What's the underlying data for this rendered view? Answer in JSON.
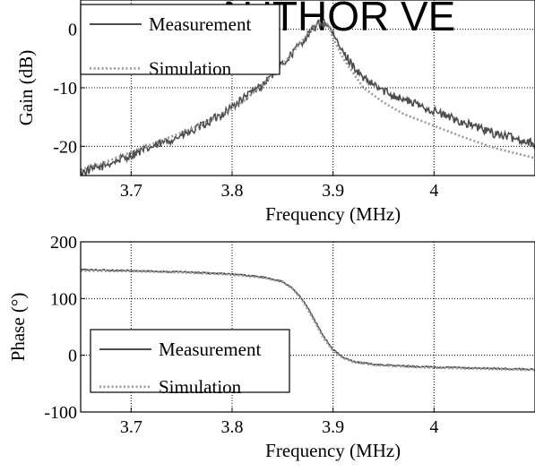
{
  "watermark": "AUTHOR VE",
  "chart_data": [
    {
      "type": "line",
      "xlabel": "Frequency (MHz)",
      "ylabel": "Gain (dB)",
      "xlim": [
        3.65,
        4.1
      ],
      "ylim": [
        -25,
        5
      ],
      "xticks": [
        3.7,
        3.8,
        3.9,
        4.0
      ],
      "xtick_labels": [
        "3.7",
        "3.8",
        "3.9",
        "4"
      ],
      "yticks": [
        0,
        -10,
        -20
      ],
      "ytick_labels": [
        "0",
        "-10",
        "-20"
      ],
      "grid": true,
      "legend": "top-left",
      "series": [
        {
          "name": "Measurement",
          "color": "#4d4d4d",
          "style": "solid",
          "noise": 0.75,
          "x": [
            3.65,
            3.67,
            3.7,
            3.73,
            3.76,
            3.79,
            3.81,
            3.83,
            3.85,
            3.86,
            3.87,
            3.88,
            3.885,
            3.89,
            3.895,
            3.9,
            3.91,
            3.93,
            3.95,
            3.97,
            4.0,
            4.03,
            4.06,
            4.1
          ],
          "y": [
            -24.5,
            -23.5,
            -21.5,
            -19.5,
            -17.5,
            -14.5,
            -12.0,
            -9.5,
            -6.0,
            -4.0,
            -2.0,
            0.0,
            0.8,
            1.2,
            0.8,
            -1.0,
            -4.0,
            -8.5,
            -10.5,
            -12.0,
            -14.0,
            -16.0,
            -17.8,
            -19.5
          ]
        },
        {
          "name": "Simulation",
          "color": "#9a9a9a",
          "style": "dotted",
          "noise": 0,
          "x": [
            3.65,
            3.67,
            3.7,
            3.73,
            3.76,
            3.79,
            3.81,
            3.83,
            3.85,
            3.86,
            3.87,
            3.88,
            3.885,
            3.89,
            3.895,
            3.9,
            3.91,
            3.93,
            3.95,
            3.97,
            4.0,
            4.03,
            4.06,
            4.1
          ],
          "y": [
            -24.0,
            -23.0,
            -21.0,
            -19.0,
            -17.0,
            -14.5,
            -12.5,
            -9.5,
            -6.0,
            -4.0,
            -1.8,
            0.2,
            1.0,
            1.4,
            0.8,
            -1.5,
            -5.0,
            -10.0,
            -12.5,
            -14.5,
            -16.5,
            -18.5,
            -20.3,
            -22.0
          ]
        }
      ]
    },
    {
      "type": "line",
      "xlabel": "Frequency (MHz)",
      "ylabel": "Phase (°)",
      "xlim": [
        3.65,
        4.1
      ],
      "ylim": [
        -100,
        200
      ],
      "xticks": [
        3.7,
        3.8,
        3.9,
        4.0
      ],
      "xtick_labels": [
        "3.7",
        "3.8",
        "3.9",
        "4"
      ],
      "yticks": [
        200,
        100,
        0,
        -100
      ],
      "ytick_labels": [
        "200",
        "100",
        "0",
        "-100"
      ],
      "grid": true,
      "legend": "bottom-left",
      "series": [
        {
          "name": "Measurement",
          "color": "#4d4d4d",
          "style": "solid",
          "noise": 1.2,
          "x": [
            3.65,
            3.7,
            3.75,
            3.8,
            3.83,
            3.85,
            3.86,
            3.87,
            3.88,
            3.89,
            3.9,
            3.91,
            3.92,
            3.94,
            3.97,
            4.0,
            4.05,
            4.1
          ],
          "y": [
            151,
            149,
            147,
            143,
            138,
            130,
            118,
            98,
            68,
            35,
            10,
            -4,
            -11,
            -16,
            -19,
            -21,
            -23,
            -25
          ]
        },
        {
          "name": "Simulation",
          "color": "#9a9a9a",
          "style": "dotted",
          "noise": 0,
          "x": [
            3.65,
            3.7,
            3.75,
            3.8,
            3.83,
            3.85,
            3.86,
            3.87,
            3.88,
            3.89,
            3.9,
            3.91,
            3.92,
            3.94,
            3.97,
            4.0,
            4.05,
            4.1
          ],
          "y": [
            149,
            148,
            146,
            142,
            137,
            129,
            117,
            96,
            65,
            32,
            8,
            -5,
            -12,
            -17,
            -20,
            -22,
            -24,
            -26
          ]
        }
      ]
    }
  ]
}
